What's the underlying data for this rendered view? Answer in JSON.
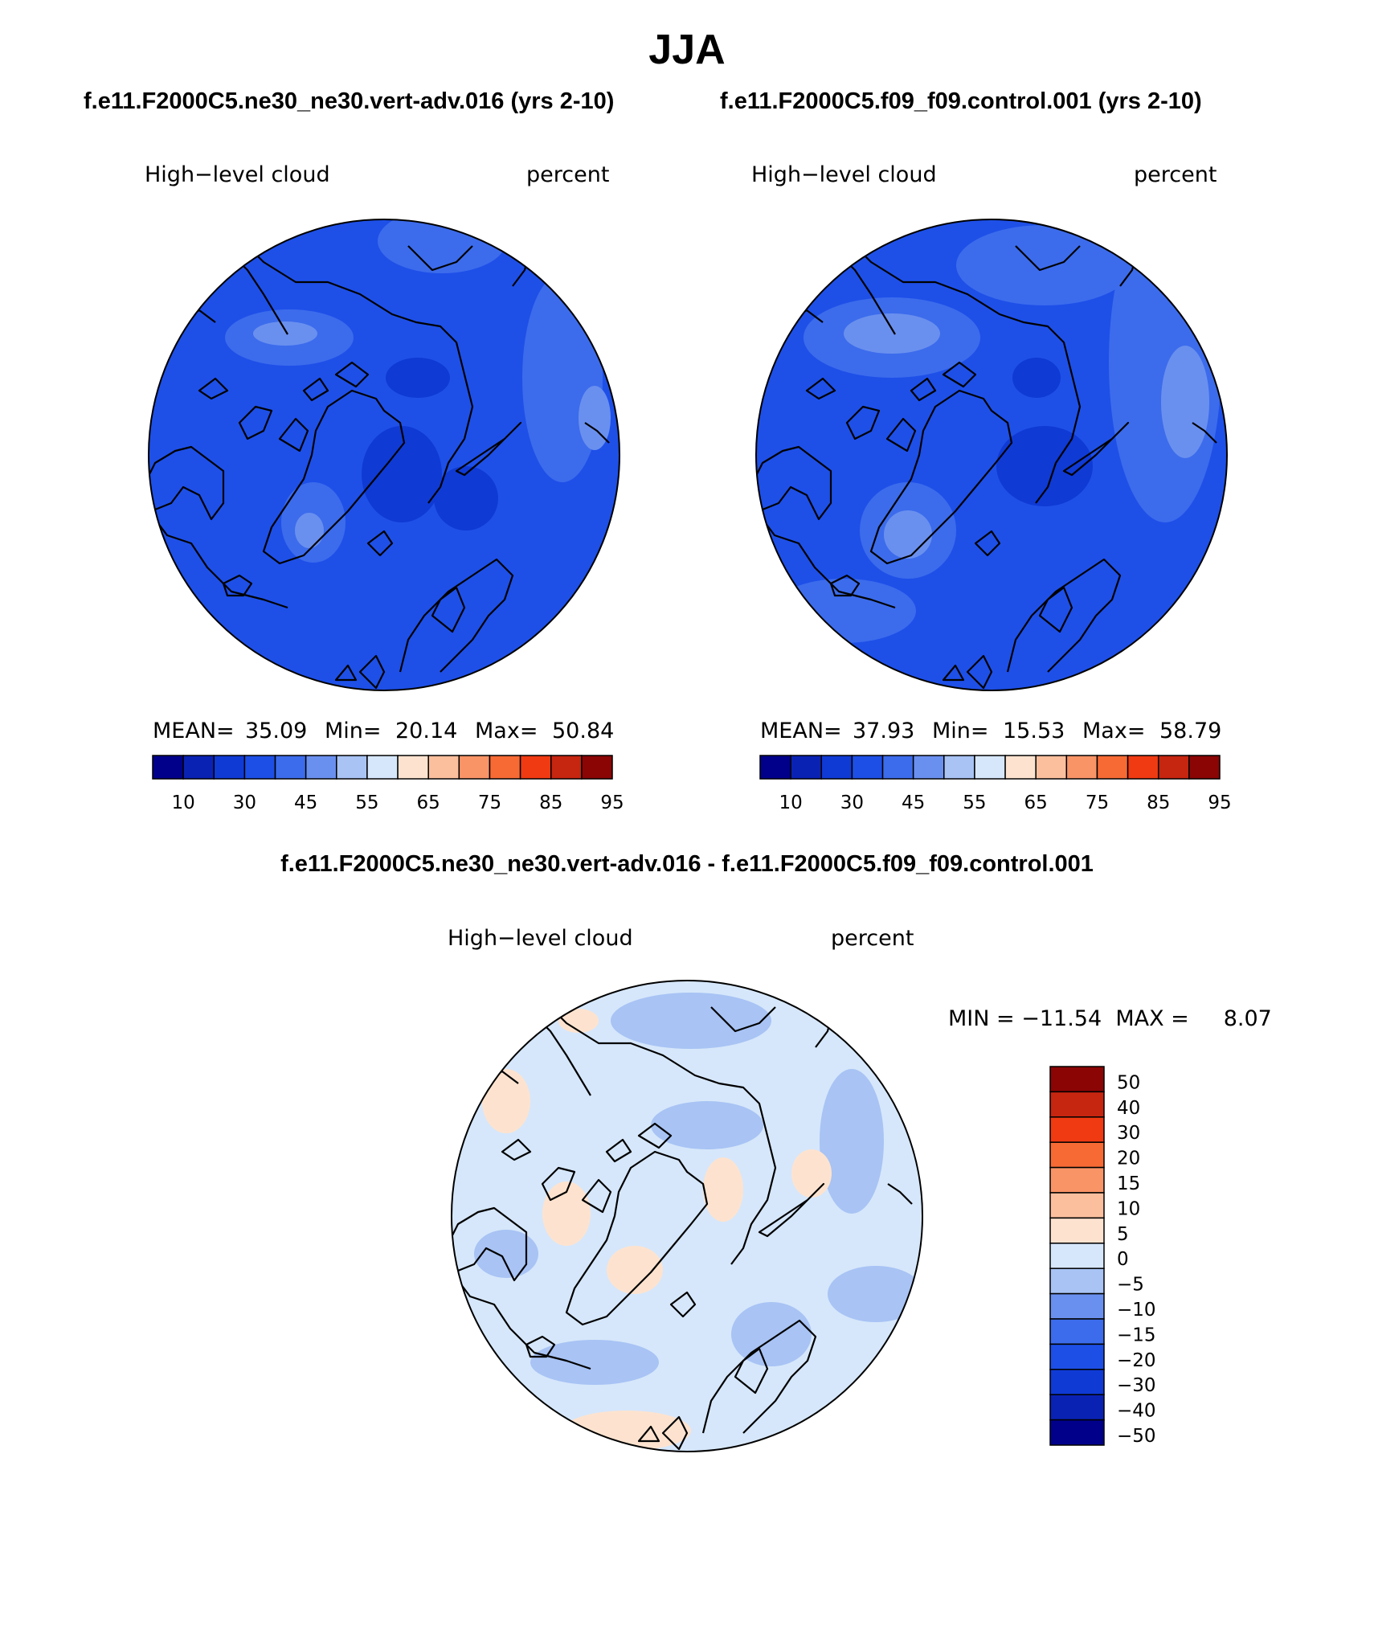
{
  "page_title": "JJA",
  "panel_a": {
    "case": "f.e11.F2000C5.ne30_ne30.vert-adv.016 (yrs 2-10)",
    "variable": "High−level cloud",
    "units": "percent",
    "stats": {
      "mean_label": "MEAN=",
      "mean": "35.09",
      "min_label": "Min=",
      "min": "20.14",
      "max_label": "Max=",
      "max": "50.84"
    }
  },
  "panel_b": {
    "case": "f.e11.F2000C5.f09_f09.control.001 (yrs 2-10)",
    "variable": "High−level cloud",
    "units": "percent",
    "stats": {
      "mean_label": "MEAN=",
      "mean": "37.93",
      "min_label": "Min=",
      "min": "15.53",
      "max_label": "Max=",
      "max": "58.79"
    }
  },
  "panel_diff": {
    "title": "f.e11.F2000C5.ne30_ne30.vert-adv.016 - f.e11.F2000C5.f09_f09.control.001",
    "variable": "High−level cloud",
    "units": "percent",
    "minmax": "MIN = −11.54  MAX =     8.07"
  },
  "colorbar_top": {
    "colors": [
      "#00008b",
      "#0a22b4",
      "#0f3ad4",
      "#1d4fe6",
      "#3c6cec",
      "#6a90ef",
      "#a8c3f4",
      "#d6e7fb",
      "#fde3cf",
      "#fcbf9e",
      "#f99467",
      "#f76a34",
      "#f03a12",
      "#c62510",
      "#8b0505"
    ],
    "tick_labels": [
      "10",
      "30",
      "45",
      "55",
      "65",
      "75",
      "85",
      "95"
    ]
  },
  "colorbar_diff": {
    "colors": [
      "#8b0505",
      "#c62510",
      "#f03a12",
      "#f76a34",
      "#f99467",
      "#fcbf9e",
      "#fde3cf",
      "#d6e7fb",
      "#a8c3f4",
      "#6a90ef",
      "#3c6cec",
      "#1d4fe6",
      "#0f3ad4",
      "#0a22b4",
      "#00008b"
    ],
    "tick_labels": [
      "50",
      "40",
      "30",
      "20",
      "15",
      "10",
      "5",
      "0",
      "−5",
      "−10",
      "−15",
      "−20",
      "−30",
      "−40",
      "−50"
    ]
  }
}
